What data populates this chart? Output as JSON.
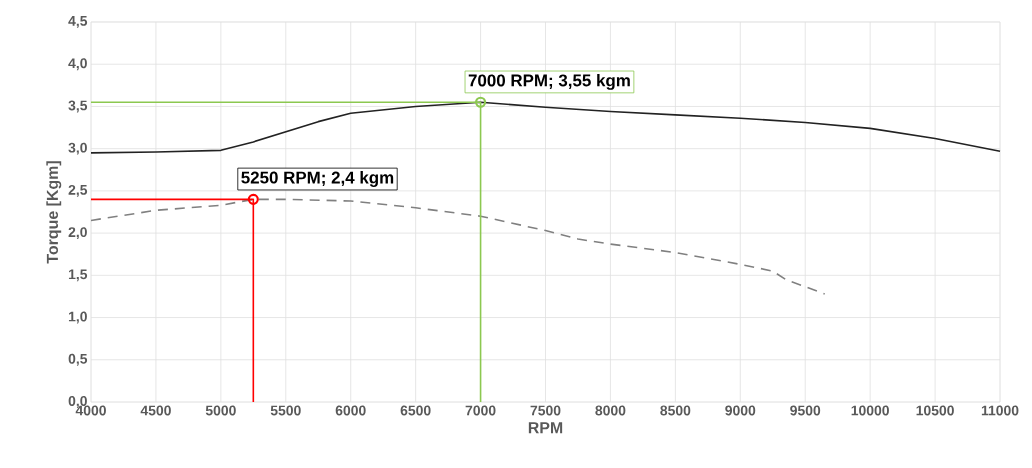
{
  "chart_data": {
    "type": "line",
    "xlabel": "RPM",
    "ylabel": "Torque [Kgm]",
    "xlim": [
      4000,
      11000
    ],
    "ylim": [
      0,
      4.5
    ],
    "xticks": [
      4000,
      4500,
      5000,
      5500,
      6000,
      6500,
      7000,
      7500,
      8000,
      8500,
      9000,
      9500,
      10000,
      10500,
      11000
    ],
    "yticks": [
      {
        "value": 0,
        "label": "0,0"
      },
      {
        "value": 0.5,
        "label": "0,5"
      },
      {
        "value": 1,
        "label": "1,0"
      },
      {
        "value": 1.5,
        "label": "1,5"
      },
      {
        "value": 2,
        "label": "2,0"
      },
      {
        "value": 2.5,
        "label": "2,5"
      },
      {
        "value": 3,
        "label": "3,0"
      },
      {
        "value": 3.5,
        "label": "3,5"
      },
      {
        "value": 4,
        "label": "4,0"
      },
      {
        "value": 4.5,
        "label": "4,5"
      }
    ],
    "grid": true,
    "series": [
      {
        "color": "#222222",
        "line_style": "solid",
        "x": [
          4000,
          4500,
          5000,
          5250,
          5500,
          5750,
          6000,
          6500,
          7000,
          7500,
          8000,
          8500,
          9000,
          9500,
          10000,
          10500,
          11000
        ],
        "values": [
          2.95,
          2.96,
          2.98,
          3.08,
          3.2,
          3.32,
          3.42,
          3.5,
          3.55,
          3.49,
          3.44,
          3.4,
          3.36,
          3.31,
          3.24,
          3.12,
          2.97
        ]
      },
      {
        "color": "#808080",
        "line_style": "dashed",
        "x": [
          4000,
          4500,
          5000,
          5250,
          5500,
          6000,
          6500,
          7000,
          7500,
          7750,
          8000,
          8500,
          9000,
          9250,
          9350,
          9650
        ],
        "values": [
          2.15,
          2.27,
          2.33,
          2.4,
          2.4,
          2.38,
          2.3,
          2.2,
          2.03,
          1.93,
          1.87,
          1.77,
          1.63,
          1.55,
          1.45,
          1.28
        ]
      },
      {
        "color": "#ff0000",
        "line_style": "solid",
        "x": [
          4000,
          5250,
          5250
        ],
        "values": [
          2.4,
          2.4,
          0
        ]
      },
      {
        "color": "#8cc850",
        "line_style": "solid",
        "x": [
          4000,
          7000,
          7000
        ],
        "values": [
          3.55,
          3.55,
          0
        ]
      },
      {
        "type": "scatter",
        "color": "#ff0000",
        "marker": "circle",
        "x": [
          5250
        ],
        "values": [
          2.4
        ]
      },
      {
        "type": "scatter",
        "color": "#8cc850",
        "marker": "circle",
        "x": [
          7000
        ],
        "values": [
          3.55
        ]
      }
    ],
    "annotations": [
      {
        "text": "5250 RPM; 2,4 kgm",
        "x": 5250,
        "y": 2.4
      },
      {
        "text": "7000 RPM; 3,55 kgm",
        "x": 7000,
        "y": 3.55
      }
    ]
  }
}
